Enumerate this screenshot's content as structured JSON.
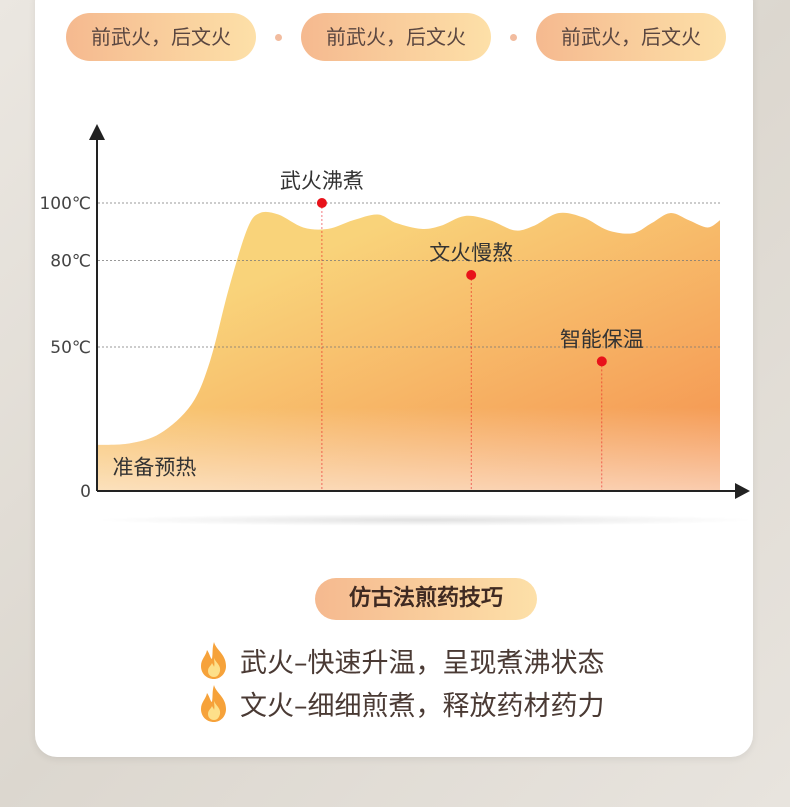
{
  "pills": [
    "前武火，后文火",
    "前武火，后文火",
    "前武火，后文火"
  ],
  "chart_data": {
    "type": "area",
    "y_ticks": [
      {
        "value": 0,
        "label": "0"
      },
      {
        "value": 50,
        "label": "50℃"
      },
      {
        "value": 80,
        "label": "80℃"
      },
      {
        "value": 100,
        "label": "100℃"
      }
    ],
    "ylim": [
      0,
      125
    ],
    "grid": true,
    "curve": [
      [
        0,
        16
      ],
      [
        5,
        16.5
      ],
      [
        10,
        20
      ],
      [
        15,
        30
      ],
      [
        18,
        45
      ],
      [
        21,
        70
      ],
      [
        24,
        91
      ],
      [
        26,
        96.5
      ],
      [
        29,
        96
      ],
      [
        33,
        91.5
      ],
      [
        37,
        91
      ],
      [
        41,
        94
      ],
      [
        45,
        96
      ],
      [
        48,
        93
      ],
      [
        52,
        91
      ],
      [
        55,
        92
      ],
      [
        59,
        95.5
      ],
      [
        63,
        94
      ],
      [
        67,
        90.5
      ],
      [
        70,
        92
      ],
      [
        74,
        96.5
      ],
      [
        78,
        95
      ],
      [
        82,
        90.5
      ],
      [
        86,
        89.5
      ],
      [
        89,
        93
      ],
      [
        92,
        96.5
      ],
      [
        95,
        94
      ],
      [
        98,
        91.5
      ],
      [
        100,
        94
      ]
    ],
    "annotations": [
      {
        "label": "准备预热",
        "x": 2,
        "y": 5,
        "marker": false
      },
      {
        "label": "武火沸煮",
        "x": 36,
        "y": 100,
        "marker": true
      },
      {
        "label": "文火慢熬",
        "x": 60,
        "y": 75,
        "marker": true
      },
      {
        "label": "智能保温",
        "x": 81,
        "y": 45,
        "marker": true
      }
    ],
    "colors": {
      "fill_start": "#f9d37a",
      "fill_end": "#f48f4d",
      "marker": "#e8121a",
      "axis": "#222222"
    }
  },
  "tips": {
    "title": "仿古法煎药技巧",
    "items": [
      "武火–快速升温，呈现煮沸状态",
      "文火–细细煎煮，释放药材药力"
    ]
  }
}
